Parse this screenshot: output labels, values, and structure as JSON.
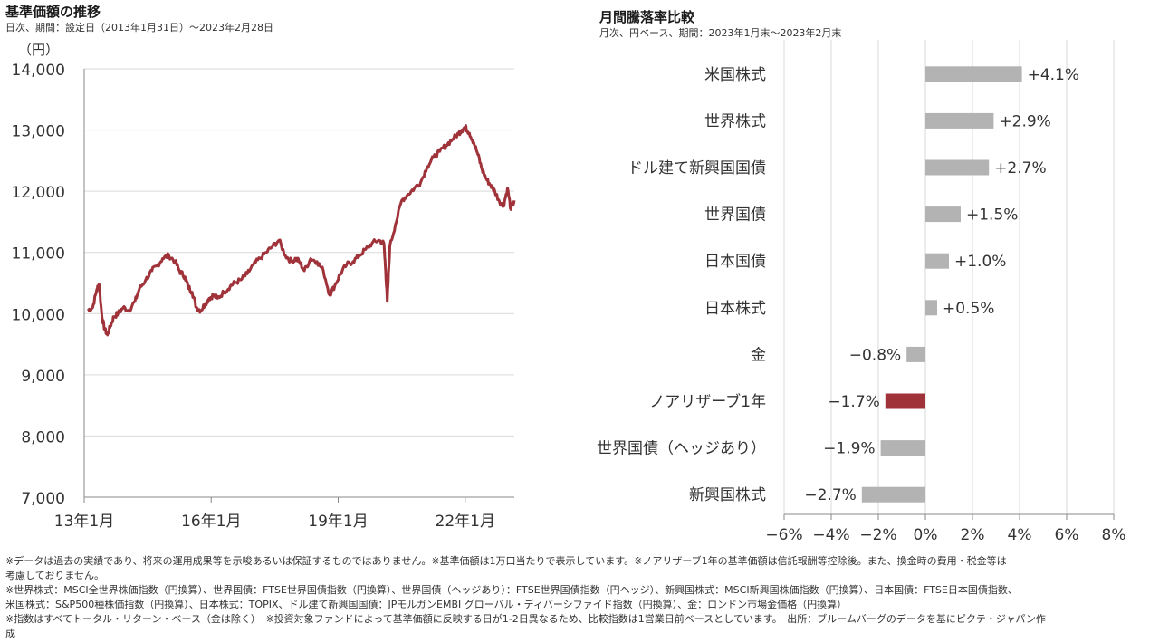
{
  "left": {
    "title": "基準価額の推移",
    "subtitle": "日次、期間：設定日（2013年1月31日）～2023年2月28日",
    "unit": "（円）"
  },
  "right": {
    "title": "月間騰落率比較",
    "subtitle": "月次、円ベース、期間：2023年1月末～2023年2月末"
  },
  "colors": {
    "accent": "#A0333A",
    "gray": "#B3B3B3",
    "grid": "#D9D9D9"
  },
  "chart_data": [
    {
      "type": "line",
      "title": "基準価額の推移",
      "ylabel": "（円）",
      "ylim": [
        7000,
        14000
      ],
      "yticks": [
        7000,
        8000,
        9000,
        10000,
        11000,
        12000,
        13000,
        14000
      ],
      "ytick_labels": [
        "7,000",
        "8,000",
        "9,000",
        "10,000",
        "11,000",
        "12,000",
        "13,000",
        "14,000"
      ],
      "xlim": [
        2013.0,
        2023.16
      ],
      "xticks": [
        2013.0,
        2016.0,
        2019.0,
        2022.0
      ],
      "xtick_labels": [
        "13年1月",
        "16年1月",
        "19年1月",
        "22年1月"
      ],
      "grid": "horizontal",
      "series": [
        {
          "x": [
            2013.08,
            2013.2,
            2013.3,
            2013.35,
            2013.42,
            2013.48,
            2013.55,
            2013.62,
            2013.7,
            2013.8,
            2013.92,
            2014.05,
            2014.2,
            2014.3,
            2014.45,
            2014.6,
            2014.72,
            2014.85,
            2015.0,
            2015.15,
            2015.25,
            2015.38,
            2015.45,
            2015.55,
            2015.65,
            2015.75,
            2015.85,
            2015.95,
            2016.05,
            2016.15,
            2016.3,
            2016.45,
            2016.55,
            2016.7,
            2016.85,
            2017.0,
            2017.15,
            2017.3,
            2017.45,
            2017.6,
            2017.75,
            2017.9,
            2018.0,
            2018.08,
            2018.2,
            2018.35,
            2018.5,
            2018.65,
            2018.8,
            2018.95,
            2019.05,
            2019.2,
            2019.35,
            2019.5,
            2019.65,
            2019.8,
            2019.95,
            2020.08,
            2020.12,
            2020.16,
            2020.22,
            2020.35,
            2020.5,
            2020.65,
            2020.8,
            2020.95,
            2021.1,
            2021.25,
            2021.4,
            2021.55,
            2021.7,
            2021.85,
            2021.92,
            2022.0,
            2022.1,
            2022.2,
            2022.3,
            2022.4,
            2022.5,
            2022.6,
            2022.7,
            2022.8,
            2022.9,
            2023.0,
            2023.08,
            2023.16
          ],
          "y": [
            10050,
            10100,
            10400,
            10480,
            9950,
            9750,
            9650,
            9800,
            9950,
            10000,
            10100,
            10050,
            10200,
            10400,
            10550,
            10700,
            10780,
            10900,
            10950,
            10850,
            10700,
            10600,
            10450,
            10350,
            10100,
            10050,
            10150,
            10250,
            10300,
            10250,
            10350,
            10450,
            10500,
            10550,
            10650,
            10800,
            10900,
            11000,
            11100,
            11200,
            10950,
            10850,
            10900,
            10850,
            10700,
            10900,
            10850,
            10700,
            10300,
            10500,
            10650,
            10800,
            10850,
            10950,
            11050,
            11150,
            11200,
            11150,
            10700,
            10200,
            11100,
            11450,
            11850,
            11950,
            12050,
            12150,
            12400,
            12550,
            12650,
            12750,
            12850,
            12950,
            13000,
            13050,
            12950,
            12800,
            12600,
            12350,
            12200,
            12100,
            12000,
            11850,
            11750,
            12050,
            11700,
            11850
          ]
        }
      ]
    },
    {
      "type": "bar",
      "orientation": "horizontal",
      "title": "月間騰落率比較",
      "xlim": [
        -6,
        8
      ],
      "xticks": [
        -6,
        -4,
        -2,
        0,
        2,
        4,
        6,
        8
      ],
      "xtick_labels": [
        "−6%",
        "−4%",
        "−2%",
        "0%",
        "2%",
        "4%",
        "6%",
        "8%"
      ],
      "grid": "vertical",
      "categories": [
        "米国株式",
        "世界株式",
        "ドル建て新興国国債",
        "世界国債",
        "日本国債",
        "日本株式",
        "金",
        "ノアリザーブ1年",
        "世界国債（ヘッジあり）",
        "新興国株式"
      ],
      "values": [
        4.1,
        2.9,
        2.7,
        1.5,
        1.0,
        0.5,
        -0.8,
        -1.7,
        -1.9,
        -2.7
      ],
      "value_labels": [
        "+4.1%",
        "+2.9%",
        "+2.7%",
        "+1.5%",
        "+1.0%",
        "+0.5%",
        "−0.8%",
        "−1.7%",
        "−1.9%",
        "−2.7%"
      ],
      "highlight_index": 7
    }
  ],
  "footnotes": [
    "※データは過去の実績であり、将来の運用成果等を示唆あるいは保証するものではありません。※基準価額は1万口当たりで表示しています。※ノアリザーブ1年の基準価額は信託報酬等控除後。また、換金時の費用・税金等は",
    "考慮しておりません。",
    "※世界株式：MSCI全世界株価指数（円換算）、世界国債：FTSE世界国債指数（円換算）、世界国債（ヘッジあり）：FTSE世界国債指数（円ヘッジ）、新興国株式：MSCI新興国株価指数（円換算）、日本国債：FTSE日本国債指数、",
    "米国株式：S&P500種株価指数（円換算）、日本株式：TOPIX、ドル建て新興国国債：JPモルガンEMBI グローバル・ディバーシファイド指数（円換算）、金：ロンドン市場金価格（円換算）",
    "※指数はすべてトータル・リターン・ベース（金は除く）　※投資対象ファンドによって基準価額に反映する日が1‐2日異なるため、比較指数は1営業日前ベースとしています。　出所：ブルームバーグのデータを基にピクテ・ジャパン作",
    "成"
  ]
}
